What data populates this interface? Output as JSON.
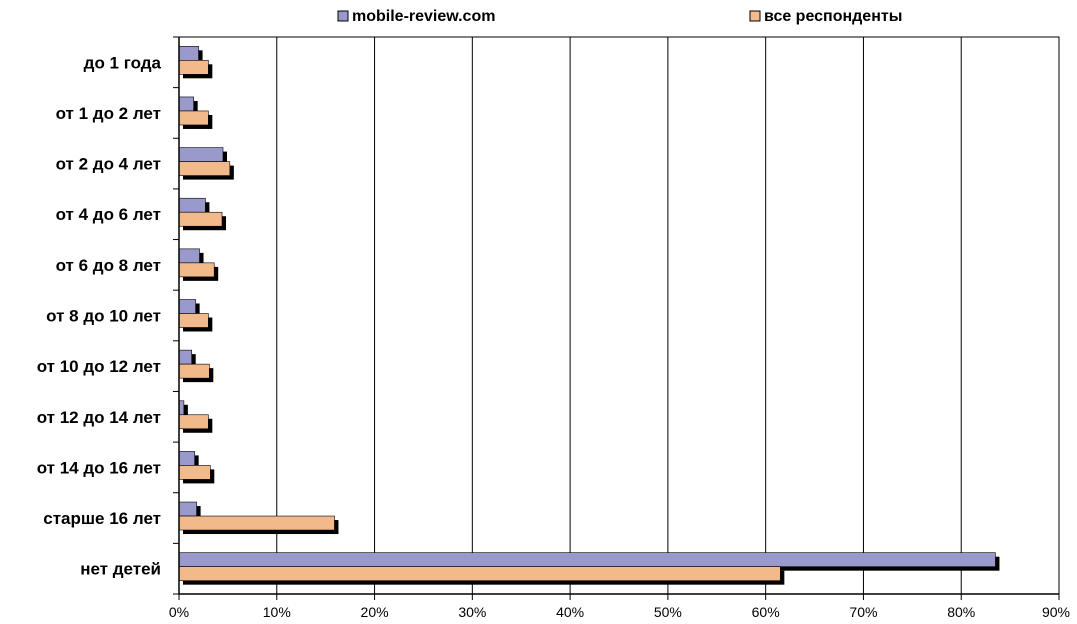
{
  "chart_data": {
    "type": "bar",
    "orientation": "horizontal",
    "categories": [
      "до 1 года",
      "от 1 до 2 лет",
      "от 2 до 4 лет",
      "от 4 до 6 лет",
      "от 6 до 8 лет",
      "от 8 до 10 лет",
      "от 10 до 12 лет",
      "от 12 до 14 лет",
      "от 14 до 16 лет",
      "старше 16 лет",
      "нет детей"
    ],
    "series": [
      {
        "name": "mobile-review.com",
        "color": "#9999cc",
        "values": [
          2.0,
          1.5,
          4.5,
          2.7,
          2.1,
          1.7,
          1.3,
          0.5,
          1.6,
          1.8,
          83.5
        ]
      },
      {
        "name": "все респонденты",
        "color": "#f2b98a",
        "values": [
          3.0,
          3.0,
          5.2,
          4.4,
          3.6,
          3.0,
          3.1,
          3.0,
          3.2,
          15.9,
          61.5
        ]
      }
    ],
    "xlim": [
      0,
      90
    ],
    "xticks": [
      "0%",
      "10%",
      "20%",
      "30%",
      "40%",
      "50%",
      "60%",
      "70%",
      "80%",
      "90%"
    ],
    "grid": "vertical",
    "legend": "top"
  }
}
